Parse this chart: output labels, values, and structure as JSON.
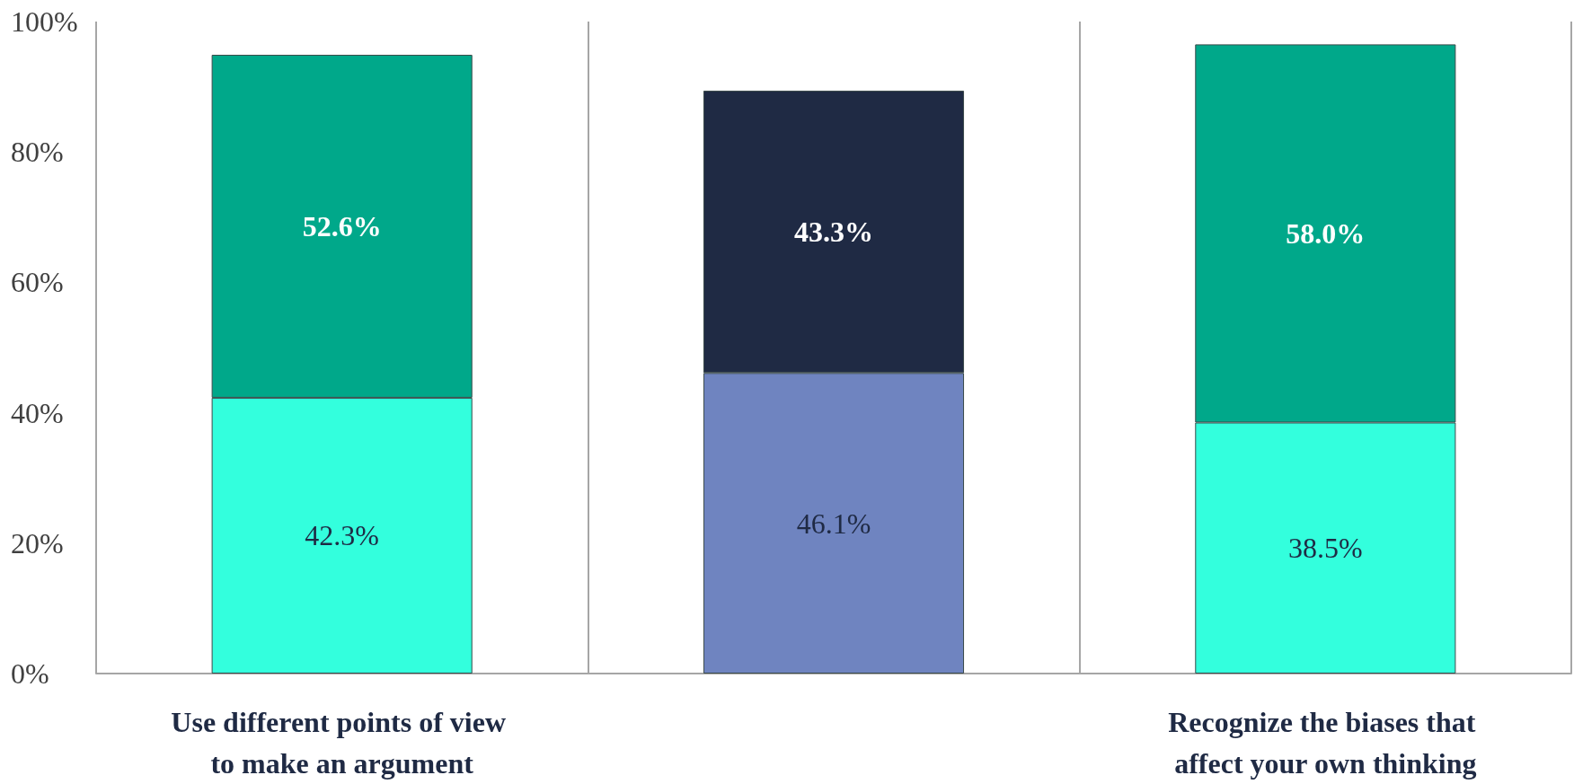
{
  "chart_data": {
    "type": "bar",
    "stacked": true,
    "categories": [
      "Use different points of view to make an argument",
      null,
      "Recognize the biases that affect your own thinking"
    ],
    "series": [
      {
        "colors": [
          "#33ffdd",
          "#6f84c0",
          "#33ffdd"
        ],
        "values": [
          42.3,
          46.1,
          38.5
        ],
        "value_labels": [
          "42.3%",
          "46.1%",
          "38.5%"
        ]
      },
      {
        "colors": [
          "#00a88a",
          "#1f2a44",
          "#00a88a"
        ],
        "values": [
          52.6,
          43.3,
          58.0
        ],
        "value_labels": [
          "52.6%",
          "43.3%",
          "58.0%"
        ]
      }
    ],
    "ylim": [
      0,
      100
    ],
    "yticks": [
      {
        "value": 0,
        "label": "0%"
      },
      {
        "value": 20,
        "label": "20%"
      },
      {
        "value": 40,
        "label": "40%"
      },
      {
        "value": 60,
        "label": "60%"
      },
      {
        "value": 80,
        "label": "80%"
      },
      {
        "value": 100,
        "label": "100%"
      }
    ],
    "grid": "x"
  }
}
